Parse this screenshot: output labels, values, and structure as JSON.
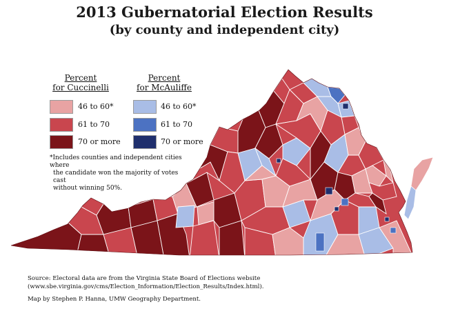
{
  "title": "2013 Gubernatorial Election Results",
  "subtitle": "(by county and independent city)",
  "legend": {
    "cuccinelli": {
      "heading_line1": "Percent",
      "heading_line2": "for Cuccinelli",
      "items": [
        {
          "label": "46 to 60*",
          "color": "#e8a3a3"
        },
        {
          "label": "61 to 70",
          "color": "#c9464e"
        },
        {
          "label": "70 or more",
          "color": "#7b1419"
        }
      ]
    },
    "mcauliffe": {
      "heading_line1": "Percent",
      "heading_line2": "for McAuliffe",
      "items": [
        {
          "label": "46 to 60*",
          "color": "#a9bde6"
        },
        {
          "label": "61 to 70",
          "color": "#4c72c2"
        },
        {
          "label": "70 or more",
          "color": "#1f2f6d"
        }
      ]
    },
    "note_line1": "*Includes counties and independent cities where",
    "note_line2": "the candidate won the majority of votes cast",
    "note_line3": "without winning 50%."
  },
  "source": {
    "line1": "Source:  Electoral data are from the Virginia State Board of Elections  website",
    "line2": "(www.sbe.virginia.gov/cms/Election_Information/Election_Results/Index.html).",
    "credit": "Map by Stephen P. Hanna, UMW Geography Department."
  },
  "colors": {
    "border": "#ffffff",
    "outline": "#6d1015"
  }
}
